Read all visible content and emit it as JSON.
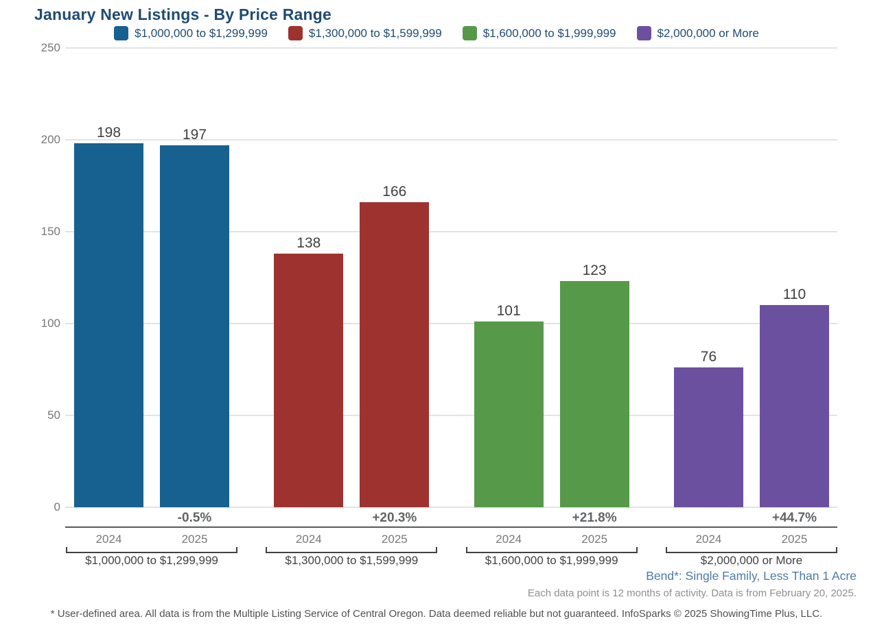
{
  "title": "January New Listings - By Price Range",
  "chart_data": {
    "type": "bar",
    "title": "January New Listings - By Price Range",
    "ylabel": "",
    "xlabel": "",
    "ylim": [
      0,
      250
    ],
    "yticks": [
      0,
      50,
      100,
      150,
      200,
      250
    ],
    "grid": "horizontal",
    "legend_position": "top-center",
    "categories": [
      "2024",
      "2025"
    ],
    "groups": [
      {
        "label": "$1,000,000 to $1,299,999",
        "color": "#16618F",
        "values": [
          198,
          197
        ],
        "pct_change": "-0.5%"
      },
      {
        "label": "$1,300,000 to $1,599,999",
        "color": "#9E322F",
        "values": [
          138,
          166
        ],
        "pct_change": "+20.3%"
      },
      {
        "label": "$1,600,000 to $1,999,999",
        "color": "#569A49",
        "values": [
          101,
          123
        ],
        "pct_change": "+21.8%"
      },
      {
        "label": "$2,000,000 or More",
        "color": "#6C50A0",
        "values": [
          76,
          110
        ],
        "pct_change": "+44.7%"
      }
    ]
  },
  "footnotes": {
    "area": "Bend*: Single Family, Less Than 1 Acre",
    "data_note": "Each data point is 12 months of activity. Data is from February 20, 2025.",
    "disclaimer": "* User-defined area. All data is from the Multiple Listing Service of Central Oregon. Data deemed reliable but not guaranteed. InfoSparks © 2025 ShowingTime Plus, LLC."
  },
  "colors": {
    "title_text": "#1E4B73",
    "legend_text": "#1E4B73",
    "value_label": "#3F4040",
    "axis_label": "#77787A",
    "pct_label": "#636466",
    "gridline": "#E3E3E3",
    "separator": "#58595B",
    "area_note": "#4D7CA8",
    "series": [
      "#16618F",
      "#9E322F",
      "#569A49",
      "#6C50A0"
    ]
  }
}
